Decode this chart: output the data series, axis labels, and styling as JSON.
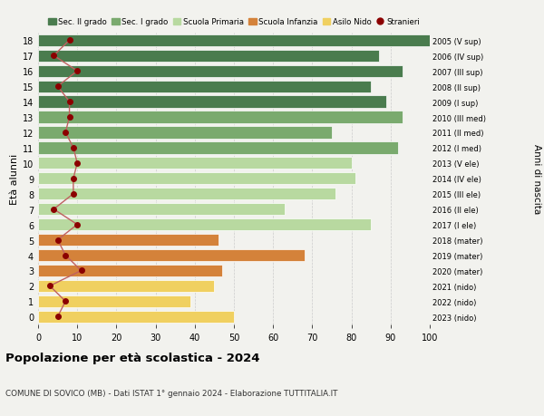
{
  "ages": [
    18,
    17,
    16,
    15,
    14,
    13,
    12,
    11,
    10,
    9,
    8,
    7,
    6,
    5,
    4,
    3,
    2,
    1,
    0
  ],
  "anni_nascita": [
    "2005 (V sup)",
    "2006 (IV sup)",
    "2007 (III sup)",
    "2008 (II sup)",
    "2009 (I sup)",
    "2010 (III med)",
    "2011 (II med)",
    "2012 (I med)",
    "2013 (V ele)",
    "2014 (IV ele)",
    "2015 (III ele)",
    "2016 (II ele)",
    "2017 (I ele)",
    "2018 (mater)",
    "2019 (mater)",
    "2020 (mater)",
    "2021 (nido)",
    "2022 (nido)",
    "2023 (nido)"
  ],
  "bar_values": [
    100,
    87,
    93,
    85,
    89,
    93,
    75,
    92,
    80,
    81,
    76,
    63,
    85,
    46,
    68,
    47,
    45,
    39,
    50
  ],
  "bar_colors": [
    "#4a7c4e",
    "#4a7c4e",
    "#4a7c4e",
    "#4a7c4e",
    "#4a7c4e",
    "#7aaa6e",
    "#7aaa6e",
    "#7aaa6e",
    "#b8d9a0",
    "#b8d9a0",
    "#b8d9a0",
    "#b8d9a0",
    "#b8d9a0",
    "#d4823a",
    "#d4823a",
    "#d4823a",
    "#f0d060",
    "#f0d060",
    "#f0d060"
  ],
  "stranieri": [
    8,
    4,
    10,
    5,
    8,
    8,
    7,
    9,
    10,
    9,
    9,
    4,
    10,
    5,
    7,
    11,
    3,
    7,
    5
  ],
  "stranieri_color": "#8b0000",
  "stranieri_line_color": "#c06060",
  "title": "Popolazione per età scolastica - 2024",
  "subtitle": "COMUNE DI SOVICO (MB) - Dati ISTAT 1° gennaio 2024 - Elaborazione TUTTITALIA.IT",
  "ylabel_left": "Età alunni",
  "ylabel_right": "Anni di nascita",
  "legend_items": [
    {
      "label": "Sec. II grado",
      "color": "#4a7c4e"
    },
    {
      "label": "Sec. I grado",
      "color": "#7aaa6e"
    },
    {
      "label": "Scuola Primaria",
      "color": "#b8d9a0"
    },
    {
      "label": "Scuola Infanzia",
      "color": "#d4823a"
    },
    {
      "label": "Asilo Nido",
      "color": "#f0d060"
    },
    {
      "label": "Stranieri",
      "color": "#8b0000"
    }
  ],
  "bg_color": "#f2f2ee",
  "grid_color": "#cccccc"
}
